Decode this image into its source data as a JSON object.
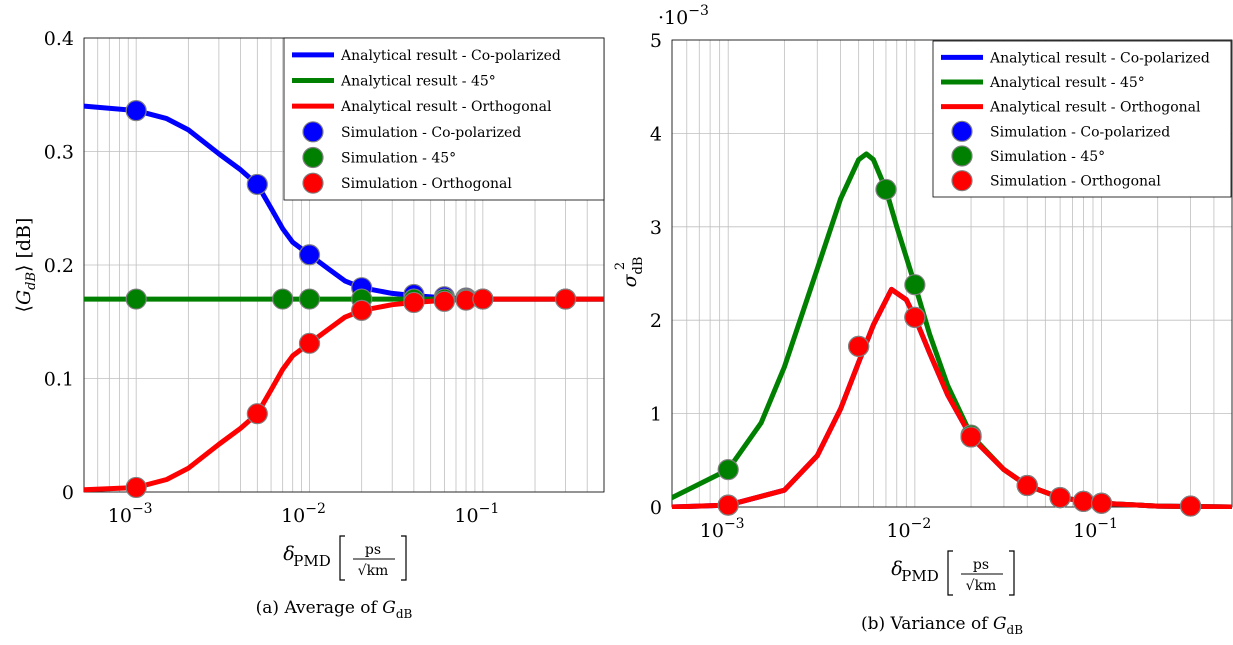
{
  "colors": {
    "co": "#0000ff",
    "deg45": "#008000",
    "orth": "#ff0000",
    "grid": "#bfbfbf",
    "marker_stroke": "#7f7f7f"
  },
  "chart_data": [
    {
      "type": "line",
      "caption": "(a) Average of G_dB",
      "caption_parts": [
        "(a) Average of ",
        "G",
        "dB"
      ],
      "xlabel": "δ_PMD [ps/√km]",
      "xlabel_parts": {
        "symbol": "δ",
        "sub": "PMD",
        "num": "ps",
        "den": "√km"
      },
      "ylabel": "⟨G_dB⟩ [dB]",
      "ylabel_parts": {
        "open": "⟨",
        "G": "G",
        "sub": "dB",
        "close": "⟩",
        "unit": "[dB]"
      },
      "x_scale": "log",
      "xlim": [
        0.0005,
        0.5
      ],
      "ylim": [
        0,
        0.4
      ],
      "x_ticks": [
        {
          "value": 0.001,
          "base": "10",
          "exp": "−3"
        },
        {
          "value": 0.01,
          "base": "10",
          "exp": "−2"
        },
        {
          "value": 0.1,
          "base": "10",
          "exp": "−1"
        }
      ],
      "y_ticks": [
        {
          "value": 0,
          "label": "0"
        },
        {
          "value": 0.1,
          "label": "0.1"
        },
        {
          "value": 0.2,
          "label": "0.2"
        },
        {
          "value": 0.3,
          "label": "0.3"
        },
        {
          "value": 0.4,
          "label": "0.4"
        }
      ],
      "grid": true,
      "legend_position": "top-right",
      "legend": [
        {
          "label": "Analytical result - Co-polarized",
          "kind": "line",
          "color": "#0000ff"
        },
        {
          "label": "Analytical result - 45°",
          "kind": "line",
          "color": "#008000"
        },
        {
          "label": "Analytical result - Orthogonal",
          "kind": "line",
          "color": "#ff0000"
        },
        {
          "label": "Simulation - Co-polarized",
          "kind": "marker",
          "color": "#0000ff"
        },
        {
          "label": "Simulation - 45°",
          "kind": "marker",
          "color": "#008000"
        },
        {
          "label": "Simulation - Orthogonal",
          "kind": "marker",
          "color": "#ff0000"
        }
      ],
      "series": [
        {
          "name": "Analytical result - Co-polarized",
          "kind": "line",
          "color": "#0000ff",
          "x": [
            0.0005,
            0.001,
            0.0015,
            0.002,
            0.003,
            0.004,
            0.005,
            0.006,
            0.007,
            0.008,
            0.01,
            0.013,
            0.016,
            0.02,
            0.03,
            0.04,
            0.06,
            0.1,
            0.2,
            0.5
          ],
          "y": [
            0.34,
            0.336,
            0.329,
            0.319,
            0.298,
            0.284,
            0.271,
            0.25,
            0.232,
            0.22,
            0.209,
            0.196,
            0.186,
            0.18,
            0.175,
            0.173,
            0.171,
            0.17,
            0.17,
            0.17
          ]
        },
        {
          "name": "Analytical result - 45°",
          "kind": "line",
          "color": "#008000",
          "x": [
            0.0005,
            0.5
          ],
          "y": [
            0.17,
            0.17
          ]
        },
        {
          "name": "Analytical result - Orthogonal",
          "kind": "line",
          "color": "#ff0000",
          "x": [
            0.0005,
            0.001,
            0.0015,
            0.002,
            0.003,
            0.004,
            0.005,
            0.006,
            0.007,
            0.008,
            0.01,
            0.013,
            0.016,
            0.02,
            0.03,
            0.04,
            0.06,
            0.1,
            0.2,
            0.5
          ],
          "y": [
            0.002,
            0.004,
            0.011,
            0.021,
            0.042,
            0.056,
            0.069,
            0.09,
            0.108,
            0.12,
            0.131,
            0.144,
            0.154,
            0.16,
            0.165,
            0.167,
            0.169,
            0.17,
            0.17,
            0.17
          ]
        },
        {
          "name": "Simulation - Co-polarized",
          "kind": "marker",
          "color": "#0000ff",
          "x": [
            0.001,
            0.005,
            0.01,
            0.02,
            0.04,
            0.06,
            0.08,
            0.1,
            0.3
          ],
          "y": [
            0.336,
            0.271,
            0.209,
            0.18,
            0.174,
            0.172,
            0.171,
            0.17,
            0.17
          ]
        },
        {
          "name": "Simulation - 45°",
          "kind": "marker",
          "color": "#008000",
          "x": [
            0.001,
            0.007,
            0.01,
            0.02,
            0.04,
            0.06,
            0.08,
            0.1,
            0.3
          ],
          "y": [
            0.17,
            0.17,
            0.17,
            0.17,
            0.17,
            0.17,
            0.17,
            0.17,
            0.17
          ]
        },
        {
          "name": "Simulation - Orthogonal",
          "kind": "marker",
          "color": "#ff0000",
          "x": [
            0.001,
            0.005,
            0.01,
            0.02,
            0.04,
            0.06,
            0.08,
            0.1,
            0.3
          ],
          "y": [
            0.004,
            0.069,
            0.131,
            0.16,
            0.167,
            0.168,
            0.169,
            0.17,
            0.17
          ]
        }
      ]
    },
    {
      "type": "line",
      "caption": "(b) Variance of G_dB",
      "caption_parts": [
        "(b) Variance of ",
        "G",
        "dB"
      ],
      "xlabel": "δ_PMD [ps/√km]",
      "xlabel_parts": {
        "symbol": "δ",
        "sub": "PMD",
        "num": "ps",
        "den": "√km"
      },
      "ylabel": "σ²_dB",
      "ylabel_parts": {
        "symbol": "σ",
        "sup": "2",
        "sub": "dB"
      },
      "y_multiplier": "·10−3",
      "y_multiplier_parts": {
        "prefix": "·10",
        "exp": "−3"
      },
      "x_scale": "log",
      "xlim": [
        0.0005,
        0.5
      ],
      "ylim": [
        0,
        5
      ],
      "x_ticks": [
        {
          "value": 0.001,
          "base": "10",
          "exp": "−3"
        },
        {
          "value": 0.01,
          "base": "10",
          "exp": "−2"
        },
        {
          "value": 0.1,
          "base": "10",
          "exp": "−1"
        }
      ],
      "y_ticks": [
        {
          "value": 0,
          "label": "0"
        },
        {
          "value": 1,
          "label": "1"
        },
        {
          "value": 2,
          "label": "2"
        },
        {
          "value": 3,
          "label": "3"
        },
        {
          "value": 4,
          "label": "4"
        },
        {
          "value": 5,
          "label": "5"
        }
      ],
      "grid": true,
      "legend_position": "top-right",
      "legend": [
        {
          "label": "Analytical result - Co-polarized",
          "kind": "line",
          "color": "#0000ff"
        },
        {
          "label": "Analytical result - 45°",
          "kind": "line",
          "color": "#008000"
        },
        {
          "label": "Analytical result - Orthogonal",
          "kind": "line",
          "color": "#ff0000"
        },
        {
          "label": "Simulation - Co-polarized",
          "kind": "marker",
          "color": "#0000ff"
        },
        {
          "label": "Simulation - 45°",
          "kind": "marker",
          "color": "#008000"
        },
        {
          "label": "Simulation - Orthogonal",
          "kind": "marker",
          "color": "#ff0000"
        }
      ],
      "series": [
        {
          "name": "Analytical result - Co-polarized",
          "kind": "line",
          "color": "#0000ff",
          "x": [
            0.0005,
            0.001,
            0.002,
            0.003,
            0.004,
            0.005,
            0.006,
            0.0075,
            0.009,
            0.01,
            0.012,
            0.015,
            0.02,
            0.03,
            0.04,
            0.06,
            0.1,
            0.2,
            0.5
          ],
          "y": [
            0.0,
            0.02,
            0.18,
            0.55,
            1.05,
            1.55,
            1.95,
            2.33,
            2.22,
            2.03,
            1.65,
            1.2,
            0.75,
            0.4,
            0.23,
            0.1,
            0.04,
            0.01,
            0.0
          ]
        },
        {
          "name": "Analytical result - 45°",
          "kind": "line",
          "color": "#008000",
          "x": [
            0.0005,
            0.001,
            0.0015,
            0.002,
            0.003,
            0.004,
            0.005,
            0.0055,
            0.006,
            0.007,
            0.008,
            0.01,
            0.012,
            0.015,
            0.02,
            0.03,
            0.04,
            0.06,
            0.1,
            0.2,
            0.5
          ],
          "y": [
            0.1,
            0.4,
            0.9,
            1.5,
            2.55,
            3.3,
            3.72,
            3.78,
            3.72,
            3.4,
            3.0,
            2.38,
            1.85,
            1.3,
            0.77,
            0.4,
            0.23,
            0.1,
            0.04,
            0.01,
            0.0
          ]
        },
        {
          "name": "Analytical result - Orthogonal",
          "kind": "line",
          "color": "#ff0000",
          "x": [
            0.0005,
            0.001,
            0.002,
            0.003,
            0.004,
            0.005,
            0.006,
            0.0075,
            0.009,
            0.01,
            0.012,
            0.015,
            0.02,
            0.03,
            0.04,
            0.06,
            0.1,
            0.2,
            0.5
          ],
          "y": [
            0.0,
            0.02,
            0.18,
            0.55,
            1.05,
            1.55,
            1.95,
            2.33,
            2.22,
            2.03,
            1.65,
            1.2,
            0.75,
            0.4,
            0.23,
            0.1,
            0.04,
            0.01,
            0.0
          ]
        },
        {
          "name": "Simulation - Co-polarized",
          "kind": "marker",
          "color": "#0000ff",
          "x": [
            0.001,
            0.005,
            0.01,
            0.02,
            0.04,
            0.06,
            0.08,
            0.1,
            0.3
          ],
          "y": [
            0.02,
            1.72,
            2.03,
            0.75,
            0.23,
            0.1,
            0.06,
            0.04,
            0.01
          ]
        },
        {
          "name": "Simulation - 45°",
          "kind": "marker",
          "color": "#008000",
          "x": [
            0.001,
            0.007,
            0.01,
            0.02,
            0.04,
            0.06,
            0.08,
            0.1,
            0.3
          ],
          "y": [
            0.4,
            3.4,
            2.38,
            0.77,
            0.23,
            0.1,
            0.06,
            0.04,
            0.01
          ]
        },
        {
          "name": "Simulation - Orthogonal",
          "kind": "marker",
          "color": "#ff0000",
          "x": [
            0.001,
            0.005,
            0.01,
            0.02,
            0.04,
            0.06,
            0.08,
            0.1,
            0.3
          ],
          "y": [
            0.02,
            1.72,
            2.03,
            0.75,
            0.23,
            0.1,
            0.06,
            0.04,
            0.01
          ]
        }
      ]
    }
  ]
}
